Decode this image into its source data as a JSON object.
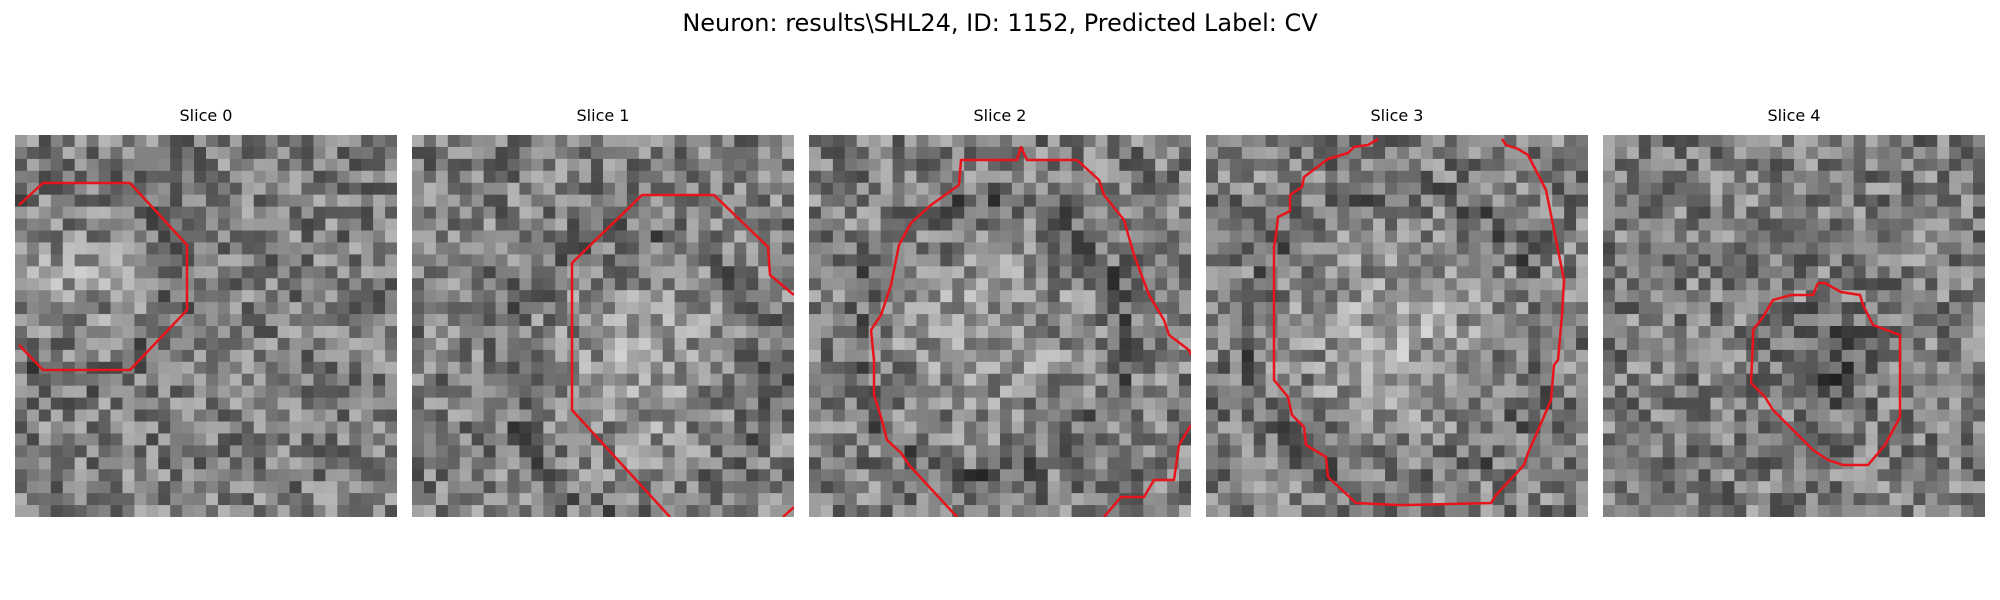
{
  "figure": {
    "title": "Neuron: results\\SHL24, ID: 1152, Predicted Label: CV"
  },
  "panels": [
    {
      "title": "Slice 0"
    },
    {
      "title": "Slice 1"
    },
    {
      "title": "Slice 2"
    },
    {
      "title": "Slice 3"
    },
    {
      "title": "Slice 4"
    }
  ],
  "colors": {
    "contour": "#e8141c",
    "background": "#ffffff"
  }
}
